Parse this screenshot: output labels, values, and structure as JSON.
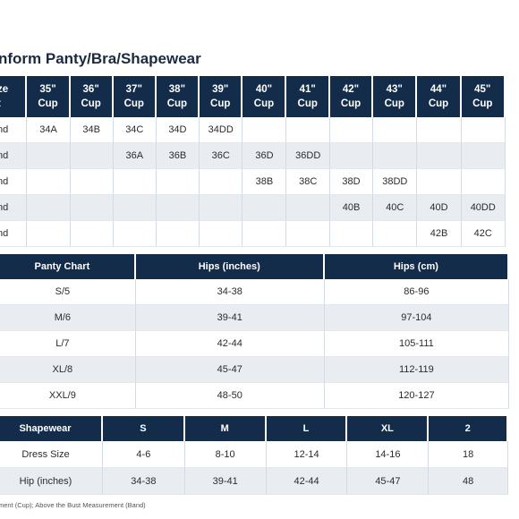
{
  "title": "nform Panty/Bra/Shapewear",
  "bra": {
    "corner": [
      "ze",
      "t"
    ],
    "columns": [
      {
        "size": "35\"",
        "cup": "Cup"
      },
      {
        "size": "36\"",
        "cup": "Cup"
      },
      {
        "size": "37\"",
        "cup": "Cup"
      },
      {
        "size": "38\"",
        "cup": "Cup"
      },
      {
        "size": "39\"",
        "cup": "Cup"
      },
      {
        "size": "40\"",
        "cup": "Cup"
      },
      {
        "size": "41\"",
        "cup": "Cup"
      },
      {
        "size": "42\"",
        "cup": "Cup"
      },
      {
        "size": "43\"",
        "cup": "Cup"
      },
      {
        "size": "44\"",
        "cup": "Cup"
      },
      {
        "size": "45\"",
        "cup": "Cup"
      }
    ],
    "rows": [
      {
        "label": "nd",
        "cells": [
          "34A",
          "34B",
          "34C",
          "34D",
          "34DD",
          "",
          "",
          "",
          "",
          "",
          ""
        ]
      },
      {
        "label": "nd",
        "cells": [
          "",
          "",
          "36A",
          "36B",
          "36C",
          "36D",
          "36DD",
          "",
          "",
          "",
          ""
        ]
      },
      {
        "label": "nd",
        "cells": [
          "",
          "",
          "",
          "",
          "",
          "38B",
          "38C",
          "38D",
          "38DD",
          "",
          ""
        ]
      },
      {
        "label": "nd",
        "cells": [
          "",
          "",
          "",
          "",
          "",
          "",
          "",
          "40B",
          "40C",
          "40D",
          "40DD"
        ]
      },
      {
        "label": "nd",
        "cells": [
          "",
          "",
          "",
          "",
          "",
          "",
          "",
          "",
          "",
          "42B",
          "42C"
        ]
      }
    ]
  },
  "panty": {
    "headers": [
      "Panty Chart",
      "Hips (inches)",
      "Hips (cm)"
    ],
    "rows": [
      [
        "S/5",
        "34-38",
        "86-96"
      ],
      [
        "M/6",
        "39-41",
        "97-104"
      ],
      [
        "L/7",
        "42-44",
        "105-111"
      ],
      [
        "XL/8",
        "45-47",
        "112-119"
      ],
      [
        "XXL/9",
        "48-50",
        "120-127"
      ]
    ]
  },
  "shapewear": {
    "headers": [
      "Shapewear",
      "S",
      "M",
      "L",
      "XL",
      "2"
    ],
    "rows": [
      [
        "Dress Size",
        "4-6",
        "8-10",
        "12-14",
        "14-16",
        "18"
      ],
      [
        "Hip (inches)",
        "34-38",
        "39-41",
        "42-44",
        "45-47",
        "48"
      ]
    ]
  },
  "footnote": "ment (Cup); Above the Bust Measurement (Band)"
}
